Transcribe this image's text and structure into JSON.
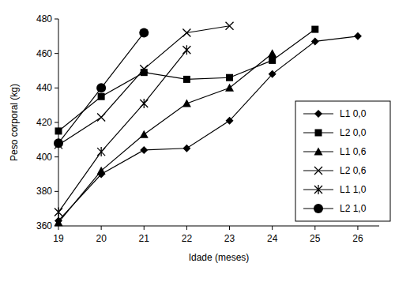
{
  "chart_data": {
    "type": "line",
    "x_label": "Idade (meses)",
    "y_label": "Peso corporal (kg)",
    "x": [
      19,
      20,
      21,
      22,
      23,
      24,
      25,
      26
    ],
    "xlim": [
      19,
      26.5
    ],
    "xticks": [
      19,
      20,
      21,
      22,
      23,
      24,
      25,
      26
    ],
    "ylim": [
      360,
      480
    ],
    "yticks": [
      360,
      380,
      400,
      420,
      440,
      460,
      480
    ],
    "grid": false,
    "legend": "lower right",
    "line_style": "solid",
    "series": [
      {
        "name": "L1 0,0",
        "color": "#000000",
        "marker": "diamond",
        "values": [
          363,
          390,
          404,
          405,
          421,
          448,
          467,
          470
        ]
      },
      {
        "name": "L2 0,0",
        "color": "#000000",
        "marker": "square",
        "values": [
          415,
          435,
          449,
          445,
          446,
          456,
          474,
          null
        ]
      },
      {
        "name": "L1 0,6",
        "color": "#000000",
        "marker": "triangle",
        "values": [
          362,
          392,
          413,
          431,
          440,
          460,
          null,
          null
        ]
      },
      {
        "name": "L2 0,6",
        "color": "#000000",
        "marker": "x",
        "values": [
          407,
          423,
          451,
          472,
          476,
          null,
          null,
          null
        ]
      },
      {
        "name": "L1 1,0",
        "color": "#000000",
        "marker": "asterisk",
        "values": [
          368,
          403,
          431,
          462,
          null,
          null,
          null,
          null
        ]
      },
      {
        "name": "L2 1,0",
        "color": "#000000",
        "marker": "circle",
        "values": [
          408,
          440,
          472,
          null,
          null,
          null,
          null,
          null
        ]
      }
    ]
  }
}
